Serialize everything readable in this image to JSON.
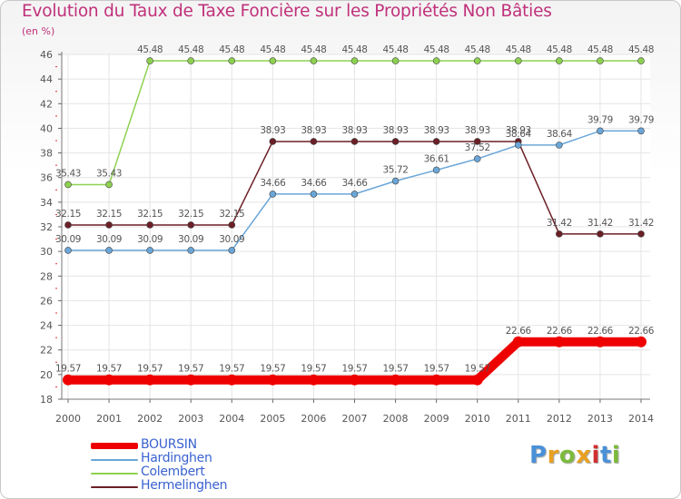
{
  "title": "Evolution du Taux de Taxe Foncière sur les Propriétés Non Bâties",
  "unit_label": "(en %)",
  "logo": {
    "text": "Proxiti",
    "colors": [
      "#4a90d9",
      "#e8a020",
      "#7cba3c",
      "#e8a020",
      "#d03030",
      "#4a90d9",
      "#7cba3c"
    ]
  },
  "chart_data": {
    "type": "line",
    "title": "Evolution du Taux de Taxe Foncière sur les Propriétés Non Bâties",
    "ylabel": "(en %)",
    "xlabel": "",
    "ylim": [
      18,
      46
    ],
    "yticks": [
      18,
      20,
      22,
      24,
      26,
      28,
      30,
      32,
      34,
      36,
      38,
      40,
      42,
      44,
      46
    ],
    "categories": [
      "2000",
      "2001",
      "2002",
      "2003",
      "2004",
      "2005",
      "2006",
      "2007",
      "2008",
      "2009",
      "2010",
      "2011",
      "2012",
      "2013",
      "2014"
    ],
    "grid": true,
    "legend_position": "bottom-left",
    "series": [
      {
        "name": "Colembert",
        "color": "#8ed150",
        "values": [
          35.43,
          35.43,
          45.48,
          45.48,
          45.48,
          45.48,
          45.48,
          45.48,
          45.48,
          45.48,
          45.48,
          45.48,
          45.48,
          45.48,
          45.48
        ]
      },
      {
        "name": "Hermelinghen",
        "color": "#6b1f26",
        "values": [
          32.15,
          32.15,
          32.15,
          32.15,
          32.15,
          38.93,
          38.93,
          38.93,
          38.93,
          38.93,
          38.93,
          38.93,
          31.42,
          31.42,
          31.42
        ]
      },
      {
        "name": "Hardinghen",
        "color": "#6aa6d8",
        "values": [
          30.09,
          30.09,
          30.09,
          30.09,
          30.09,
          34.66,
          34.66,
          34.66,
          35.72,
          36.61,
          37.52,
          38.64,
          38.64,
          39.79,
          39.79
        ]
      },
      {
        "name": "BOURSIN",
        "color": "#ee0000",
        "values": [
          19.57,
          19.57,
          19.57,
          19.57,
          19.57,
          19.57,
          19.57,
          19.57,
          19.57,
          19.57,
          19.57,
          22.66,
          22.66,
          22.66,
          22.66
        ]
      }
    ],
    "data_labels": {
      "Colembert": [
        "35.43",
        "35.43",
        "45.48",
        "45.48",
        "45.48",
        "45.48",
        "45.48",
        "45.48",
        "45.48",
        "45.48",
        "45.48",
        "45.48",
        "45.48",
        "45.48",
        "45.48"
      ],
      "Hermelinghen": [
        "32.15",
        "32.15",
        "32.15",
        "32.15",
        "32.15",
        "38.93",
        "38.93",
        "38.93",
        "38.93",
        "38.93",
        "38.93",
        "38.93",
        "31.42",
        "31.42",
        "31.42"
      ],
      "Hardinghen": [
        "30.09",
        "30.09",
        "30.09",
        "30.09",
        "30.09",
        "34.66",
        "34.66",
        "34.66",
        "35.72",
        "36.61",
        "37.52",
        "38.64",
        "38.64",
        "39.79",
        "39.79"
      ],
      "BOURSIN": [
        "19.57",
        "19.57",
        "19.57",
        "19.57",
        "19.57",
        "19.57",
        "19.57",
        "19.57",
        "19.57",
        "19.57",
        "19.57",
        "22.66",
        "22.66",
        "22.66",
        "22.66"
      ]
    },
    "legend": [
      {
        "name": "BOURSIN",
        "color": "#ee0000"
      },
      {
        "name": "Hardinghen",
        "color": "#6aa6d8"
      },
      {
        "name": "Colembert",
        "color": "#8ed150"
      },
      {
        "name": "Hermelinghen",
        "color": "#6b1f26"
      }
    ]
  }
}
